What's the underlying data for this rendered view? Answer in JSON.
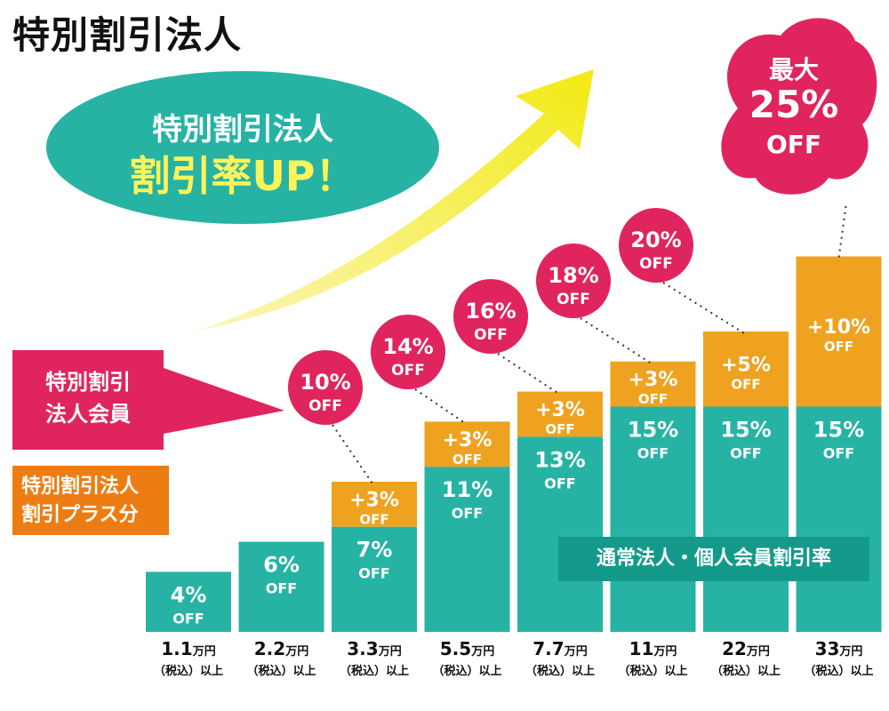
{
  "title": "特別割引法人",
  "banner": {
    "line1": "特別割引法人",
    "line2": "割引率UP！"
  },
  "legend": {
    "member": [
      "特別割引",
      "法人会員"
    ],
    "plus": [
      "特別割引法人",
      "割引プラス分"
    ]
  },
  "normal_label": "通常法人・個人会員割引率",
  "max_badge": {
    "top": "最大",
    "value": "25%",
    "off": "OFF"
  },
  "colors": {
    "teal": "#26b3a4",
    "orange": "#eea21f",
    "pink": "#e0245e",
    "yellow": "#f4ec1a"
  },
  "chart_data": {
    "type": "bar",
    "stacked": true,
    "categories": [
      "1.1万円（税込）以上",
      "2.2万円（税込）以上",
      "3.3万円（税込）以上",
      "5.5万円（税込）以上",
      "7.7万円（税込）以上",
      "11万円（税込）以上",
      "22万円（税込）以上",
      "33万円（税込）以上"
    ],
    "price_main": [
      "1.1",
      "2.2",
      "3.3",
      "5.5",
      "7.7",
      "11",
      "22",
      "33"
    ],
    "price_unit": "万円",
    "price_sub": "（税込）以上",
    "series": [
      {
        "name": "通常法人・個人会員割引率",
        "values": [
          4,
          6,
          7,
          11,
          13,
          15,
          15,
          15
        ],
        "labels": [
          "4%",
          "6%",
          "7%",
          "11%",
          "13%",
          "15%",
          "15%",
          "15%"
        ]
      },
      {
        "name": "特別割引法人割引プラス分",
        "values": [
          0,
          0,
          3,
          3,
          3,
          3,
          5,
          10
        ],
        "labels": [
          "",
          "",
          "+3%",
          "+3%",
          "+3%",
          "+3%",
          "+5%",
          "+10%"
        ]
      }
    ],
    "off_text": "OFF",
    "member_totals": [
      null,
      null,
      10,
      14,
      16,
      18,
      20,
      25
    ],
    "member_total_labels": [
      "",
      "",
      "10%",
      "14%",
      "16%",
      "18%",
      "20%",
      "25%"
    ],
    "ylim": [
      0,
      25
    ]
  }
}
